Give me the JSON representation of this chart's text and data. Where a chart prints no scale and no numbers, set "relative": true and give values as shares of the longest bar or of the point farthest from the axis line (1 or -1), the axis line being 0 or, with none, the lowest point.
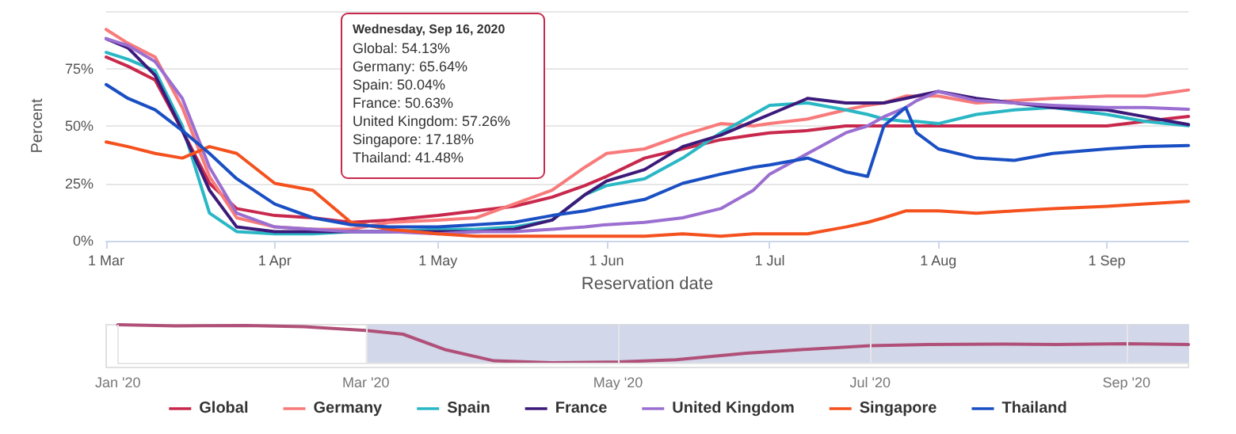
{
  "chart_data": [
    {
      "type": "line",
      "ylabel": "Percent",
      "xlabel": "Reservation date",
      "annotations": [
        "Wednesday, Sep 16, 2020",
        "Global: 54.13%",
        "Germany: 65.64%",
        "Spain: 50.04%",
        "France: 50.63%",
        "United Kingdom: 57.26%",
        "Singapore: 17.18%",
        "Thailand: 41.48%"
      ],
      "x": [
        "2020-03-01",
        "2020-03-05",
        "2020-03-10",
        "2020-03-15",
        "2020-03-20",
        "2020-03-25",
        "2020-04-01",
        "2020-04-08",
        "2020-04-15",
        "2020-04-22",
        "2020-05-01",
        "2020-05-08",
        "2020-05-15",
        "2020-05-22",
        "2020-05-28",
        "2020-06-01",
        "2020-06-08",
        "2020-06-15",
        "2020-06-22",
        "2020-06-28",
        "2020-07-01",
        "2020-07-08",
        "2020-07-15",
        "2020-07-19",
        "2020-07-22",
        "2020-07-26",
        "2020-07-28",
        "2020-08-01",
        "2020-08-08",
        "2020-08-15",
        "2020-08-22",
        "2020-09-01",
        "2020-09-08",
        "2020-09-16"
      ],
      "series": [
        {
          "name": "Global",
          "color": "#c8284c",
          "values": [
            80,
            76,
            70,
            48,
            25,
            14,
            11,
            10,
            8,
            9,
            11,
            13,
            15,
            19,
            24,
            28,
            36,
            40,
            44,
            46,
            47,
            48,
            50,
            50,
            50,
            50,
            50,
            50,
            50,
            50,
            50,
            50,
            52,
            54.13
          ]
        },
        {
          "name": "Germany",
          "color": "#f87a7a",
          "values": [
            92,
            86,
            80,
            58,
            28,
            10,
            6,
            5,
            5,
            8,
            9,
            10,
            16,
            22,
            32,
            38,
            40,
            46,
            51,
            50,
            51,
            53,
            57,
            59,
            60,
            63,
            63,
            63,
            60,
            61,
            62,
            63,
            63,
            65.64
          ]
        },
        {
          "name": "Spain",
          "color": "#2ab7c5",
          "values": [
            82,
            79,
            74,
            50,
            12,
            4,
            3,
            3,
            4,
            4,
            5,
            5,
            6,
            9,
            20,
            24,
            27,
            36,
            47,
            55,
            59,
            60,
            57,
            55,
            53,
            52,
            52,
            51,
            55,
            57,
            58,
            55,
            52,
            50.04
          ]
        },
        {
          "name": "France",
          "color": "#3d1a7a",
          "values": [
            88,
            84,
            72,
            48,
            22,
            6,
            4,
            4,
            4,
            4,
            4,
            4,
            5,
            9,
            20,
            26,
            31,
            41,
            46,
            52,
            55,
            62,
            60,
            60,
            60,
            62,
            63,
            65,
            62,
            60,
            58,
            57,
            54,
            50.63
          ]
        },
        {
          "name": "United Kingdom",
          "color": "#9b6fd1",
          "values": [
            88,
            85,
            78,
            62,
            32,
            12,
            6,
            5,
            4,
            4,
            3,
            4,
            4,
            5,
            6,
            7,
            8,
            10,
            14,
            22,
            29,
            38,
            47,
            50,
            54,
            58,
            61,
            65,
            61,
            60,
            59,
            58,
            58,
            57.26
          ]
        },
        {
          "name": "Singapore",
          "color": "#f4511e",
          "values": [
            43,
            41,
            38,
            36,
            41,
            38,
            25,
            22,
            8,
            5,
            3,
            2,
            2,
            2,
            2,
            2,
            2,
            3,
            2,
            3,
            3,
            3,
            6,
            8,
            10,
            13,
            13,
            13,
            12,
            13,
            14,
            15,
            16,
            17.18
          ]
        },
        {
          "name": "Thailand",
          "color": "#1a4fc4",
          "values": [
            68,
            62,
            57,
            48,
            38,
            27,
            16,
            10,
            7,
            6,
            6,
            7,
            8,
            11,
            13,
            15,
            18,
            25,
            29,
            32,
            33,
            36,
            30,
            28,
            50,
            58,
            47,
            40,
            36,
            35,
            38,
            40,
            41,
            41.48
          ]
        }
      ],
      "xlim": [
        "2020-03-01",
        "2020-09-16"
      ],
      "xticks": [
        {
          "value": "2020-03-01",
          "label": "1 Mar"
        },
        {
          "value": "2020-04-01",
          "label": "1 Apr"
        },
        {
          "value": "2020-05-01",
          "label": "1 May"
        },
        {
          "value": "2020-06-01",
          "label": "1 Jun"
        },
        {
          "value": "2020-07-01",
          "label": "1 Jul"
        },
        {
          "value": "2020-08-01",
          "label": "1 Aug"
        },
        {
          "value": "2020-09-01",
          "label": "1 Sep"
        }
      ],
      "ylim": [
        0,
        100
      ],
      "yticks": [
        {
          "value": 0,
          "label": "0%"
        },
        {
          "value": 25,
          "label": "25%"
        },
        {
          "value": 50,
          "label": "50%"
        },
        {
          "value": 75,
          "label": "75%"
        },
        {
          "value": 100,
          "label": null
        }
      ],
      "grid": "y",
      "legend": "bottom",
      "marker": "none",
      "line_style": "solid"
    },
    {
      "type": "line",
      "relative": true,
      "tick_labels": "x",
      "grid": "x",
      "x": [
        "2020-01-01",
        "2020-01-15",
        "2020-02-01",
        "2020-02-15",
        "2020-03-01",
        "2020-03-10",
        "2020-03-20",
        "2020-04-01",
        "2020-04-15",
        "2020-05-01",
        "2020-05-15",
        "2020-06-01",
        "2020-06-15",
        "2020-07-01",
        "2020-07-15",
        "2020-08-01",
        "2020-08-15",
        "2020-09-01",
        "2020-09-16"
      ],
      "series": [
        {
          "color": "#b05078",
          "values": [
            1,
            0.97,
            0.98,
            0.95,
            0.85,
            0.75,
            0.35,
            0.05,
            0,
            0.02,
            0.08,
            0.25,
            0.35,
            0.45,
            0.48,
            0.49,
            0.48,
            0.5,
            0.48
          ]
        }
      ],
      "xlim": [
        "2020-01-01",
        "2020-09-16"
      ],
      "xticks": [
        {
          "value": "2020-01-01",
          "label": "Jan '20"
        },
        {
          "value": "2020-03-01",
          "label": "Mar '20"
        },
        {
          "value": "2020-05-01",
          "label": "May '20"
        },
        {
          "value": "2020-07-01",
          "label": "Jul '20"
        },
        {
          "value": "2020-09-01",
          "label": "Sep '20"
        }
      ],
      "bands": [
        {
          "axis": "x",
          "from": "2020-03-01",
          "to": "2020-09-16",
          "color": "#cdd3e8"
        }
      ]
    }
  ]
}
